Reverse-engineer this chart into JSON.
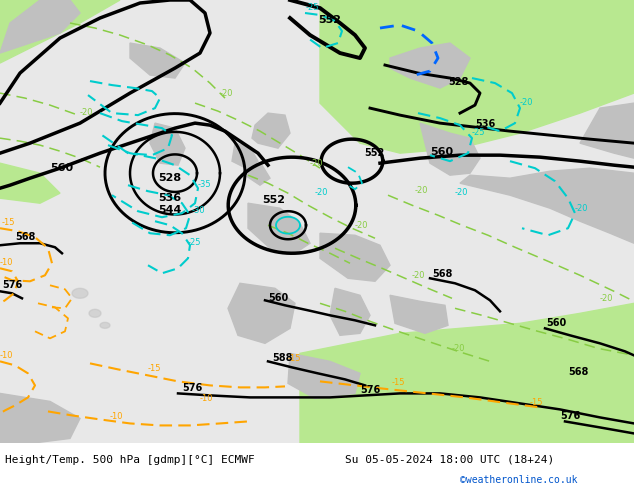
{
  "title_left": "Height/Temp. 500 hPa [gdmp][°C] ECMWF",
  "title_right": "Su 05-05-2024 18:00 UTC (18+24)",
  "credit": "©weatheronline.co.uk",
  "background_color": "#ffffff",
  "map_bg_color": "#e8e8e8",
  "green_color": "#b8e890",
  "land_gray_color": "#c0c0c0",
  "bottom_bar_color": "#ffffff",
  "black": "#000000",
  "orange": "#ffa500",
  "cyan": "#00cccc",
  "blue": "#0066ff",
  "lime": "#88cc44",
  "lw_thick": 2.5,
  "lw_med": 1.8,
  "lw_thin": 1.2,
  "lfs": 7,
  "tfs": 8,
  "cfs": 7,
  "figsize": [
    6.34,
    4.9
  ],
  "dpi": 100
}
